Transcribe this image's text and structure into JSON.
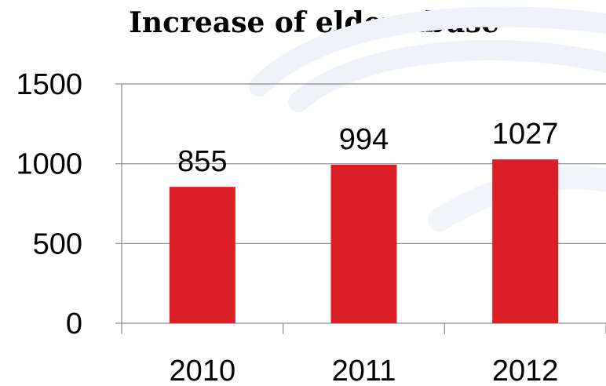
{
  "chart_data": {
    "type": "bar",
    "title": "Increase of elder abuse",
    "categories": [
      "2010",
      "2011",
      "2012"
    ],
    "values": [
      855,
      994,
      1027
    ],
    "data_labels": [
      "855",
      "994",
      "1027"
    ],
    "ylim": [
      0,
      1500
    ],
    "yticks": [
      0,
      500,
      1000,
      1500
    ],
    "ytick_labels": [
      "0",
      "500",
      "1000",
      "1500"
    ],
    "xlabel": "",
    "ylabel": "",
    "grid": true,
    "legend": "none",
    "bar_color": "#dc1f26",
    "grid_color": "#8c8c8c"
  }
}
